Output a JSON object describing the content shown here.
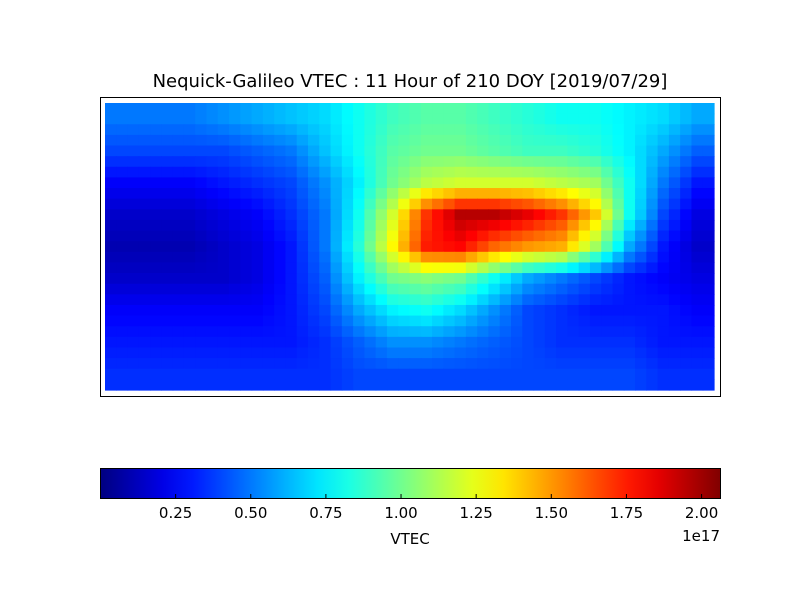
{
  "chart_data": {
    "type": "heatmap",
    "title": "Nequick-Galileo VTEC : 11 Hour of 210 DOY [2019/07/29]",
    "colormap": "jet",
    "x": [
      -170,
      -150,
      -130,
      -110,
      -90,
      -70,
      -50,
      -30,
      -10,
      10,
      30,
      50,
      70,
      90,
      110,
      130,
      150,
      170
    ],
    "y": [
      80,
      60,
      40,
      20,
      0,
      -20,
      -40,
      -60,
      -80
    ],
    "xlim": [
      -180,
      180
    ],
    "ylim": [
      -90,
      90
    ],
    "values": [
      [
        0.5,
        0.5,
        0.5,
        0.55,
        0.6,
        0.65,
        0.7,
        0.8,
        0.9,
        0.95,
        0.95,
        0.9,
        0.85,
        0.8,
        0.8,
        0.75,
        0.7,
        0.6
      ],
      [
        0.4,
        0.4,
        0.4,
        0.4,
        0.45,
        0.5,
        0.65,
        0.8,
        0.95,
        1.0,
        1.0,
        0.95,
        0.9,
        0.9,
        0.85,
        0.75,
        0.6,
        0.45
      ],
      [
        0.25,
        0.25,
        0.25,
        0.3,
        0.35,
        0.4,
        0.55,
        0.75,
        1.0,
        1.15,
        1.2,
        1.2,
        1.2,
        1.15,
        1.1,
        0.8,
        0.5,
        0.3
      ],
      [
        0.15,
        0.15,
        0.15,
        0.2,
        0.25,
        0.35,
        0.5,
        0.8,
        1.2,
        1.7,
        1.95,
        1.95,
        1.85,
        1.7,
        1.4,
        0.8,
        0.4,
        0.2
      ],
      [
        0.1,
        0.1,
        0.1,
        0.15,
        0.2,
        0.3,
        0.5,
        0.85,
        1.3,
        1.75,
        1.8,
        1.6,
        1.5,
        1.45,
        1.1,
        0.6,
        0.3,
        0.15
      ],
      [
        0.15,
        0.15,
        0.15,
        0.15,
        0.2,
        0.3,
        0.45,
        0.75,
        1.0,
        1.05,
        1.0,
        0.8,
        0.6,
        0.5,
        0.4,
        0.3,
        0.25,
        0.2
      ],
      [
        0.25,
        0.25,
        0.25,
        0.25,
        0.25,
        0.3,
        0.4,
        0.6,
        0.75,
        0.8,
        0.7,
        0.55,
        0.4,
        0.35,
        0.3,
        0.3,
        0.3,
        0.25
      ],
      [
        0.3,
        0.3,
        0.3,
        0.3,
        0.3,
        0.3,
        0.35,
        0.45,
        0.55,
        0.55,
        0.5,
        0.45,
        0.4,
        0.35,
        0.35,
        0.35,
        0.3,
        0.3
      ],
      [
        0.35,
        0.35,
        0.35,
        0.35,
        0.35,
        0.35,
        0.35,
        0.4,
        0.4,
        0.4,
        0.4,
        0.4,
        0.4,
        0.4,
        0.4,
        0.4,
        0.35,
        0.35
      ]
    ],
    "colorbar": {
      "label": "VTEC",
      "offset_label": "1e17",
      "vmin": 0,
      "vmax": 2.063,
      "ticks": [
        0.25,
        0.5,
        0.75,
        1.0,
        1.25,
        1.5,
        1.75,
        2.0
      ],
      "tick_labels": [
        "0.25",
        "0.50",
        "0.75",
        "1.00",
        "1.25",
        "1.50",
        "1.75",
        "2.00"
      ]
    }
  }
}
